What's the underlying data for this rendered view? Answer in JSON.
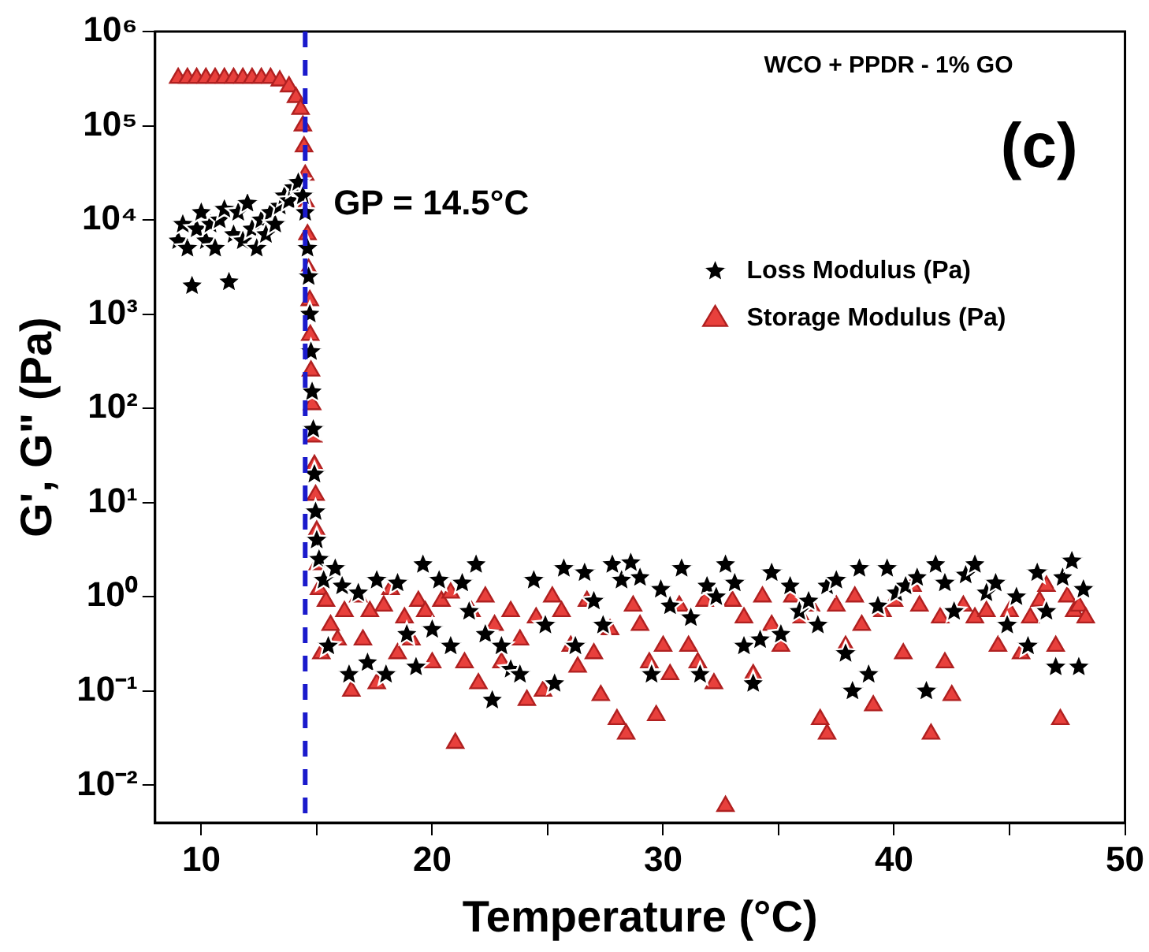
{
  "chart_data": {
    "type": "scatter",
    "title": "WCO + PPDR - 1% GO",
    "xlabel": "Temperature (°C)",
    "ylabel": "G', G\" (Pa)",
    "annotations": [
      "(c)"
    ],
    "legend": "top right",
    "log": "y",
    "grid": false,
    "xlim": [
      8,
      50
    ],
    "xticks": [
      10,
      {
        "value": 15,
        "label": null
      },
      20,
      {
        "value": 25,
        "label": null
      },
      30,
      {
        "value": 35,
        "label": null
      },
      40,
      {
        "value": 45,
        "label": null
      },
      50
    ],
    "ylim": [
      0.004,
      1000000
    ],
    "yticks": [
      {
        "value": 0.01,
        "label": "10⁻²"
      },
      {
        "value": 0.1,
        "label": "10⁻¹"
      },
      {
        "value": 1,
        "label": "10⁰"
      },
      {
        "value": 10,
        "label": "10¹"
      },
      {
        "value": 100,
        "label": "10²"
      },
      {
        "value": 1000,
        "label": "10³"
      },
      {
        "value": 10000,
        "label": "10⁴"
      },
      {
        "value": 100000,
        "label": "10⁵"
      },
      {
        "value": 1000000,
        "label": "10⁶"
      }
    ],
    "ref_lines": [
      {
        "axis": "x",
        "value": 14.5,
        "label": "GP = 14.5°C",
        "color": "#1a1acc",
        "line_style": "dashed"
      }
    ],
    "series": [
      {
        "name": "Loss Modulus (Pa)",
        "color": "#000000",
        "marker": "star",
        "x": [
          9.0,
          9.2,
          9.4,
          9.6,
          9.8,
          10.0,
          10.2,
          10.4,
          10.6,
          10.8,
          11.0,
          11.2,
          11.4,
          11.6,
          11.8,
          12.0,
          12.2,
          12.4,
          12.6,
          12.8,
          13.0,
          13.2,
          13.4,
          13.6,
          13.8,
          14.0,
          14.2,
          14.4,
          14.5,
          14.6,
          14.65,
          14.7,
          14.75,
          14.8,
          14.85,
          14.9,
          14.95,
          15.0,
          15.1,
          15.3,
          15.5,
          15.8,
          16.1,
          16.4,
          16.8,
          17.2,
          17.6,
          18.0,
          18.5,
          18.9,
          19.3,
          19.6,
          20.0,
          20.3,
          20.8,
          21.3,
          21.6,
          21.9,
          22.3,
          22.6,
          23.0,
          23.4,
          23.8,
          24.4,
          24.9,
          25.3,
          25.7,
          26.2,
          26.6,
          27.0,
          27.4,
          27.8,
          28.2,
          28.6,
          29.0,
          29.5,
          29.9,
          30.3,
          30.8,
          31.2,
          31.6,
          31.9,
          32.3,
          32.7,
          33.1,
          33.5,
          33.9,
          34.2,
          34.7,
          35.1,
          35.5,
          35.9,
          36.3,
          36.7,
          37.1,
          37.5,
          37.9,
          38.2,
          38.5,
          38.9,
          39.3,
          39.7,
          40.1,
          40.5,
          41.0,
          41.4,
          41.8,
          42.2,
          42.6,
          43.1,
          43.5,
          44.0,
          44.4,
          44.9,
          45.3,
          45.8,
          46.2,
          46.6,
          47.0,
          47.3,
          47.7,
          48.0,
          48.2
        ],
        "values": [
          6000,
          9000,
          5000,
          2000,
          8000,
          12000,
          6000,
          9000,
          5000,
          10000,
          13000,
          2200,
          7000,
          12000,
          6000,
          15000,
          8000,
          5000,
          10000,
          7000,
          12000,
          9000,
          14000,
          18000,
          16000,
          22000,
          25000,
          18000,
          12000,
          5000,
          2500,
          1000,
          400,
          150,
          60,
          20,
          8,
          4,
          2.5,
          1.5,
          0.3,
          2.0,
          1.3,
          0.15,
          1.1,
          0.2,
          1.5,
          0.15,
          1.4,
          0.4,
          0.18,
          2.2,
          0.45,
          1.5,
          0.3,
          1.4,
          0.7,
          2.2,
          0.4,
          0.08,
          0.3,
          0.17,
          0.15,
          1.5,
          0.5,
          0.12,
          2.0,
          0.3,
          1.8,
          0.9,
          0.5,
          2.2,
          1.5,
          2.3,
          1.6,
          0.15,
          1.2,
          0.8,
          2.0,
          0.6,
          0.15,
          1.3,
          1.0,
          2.2,
          1.4,
          0.3,
          0.12,
          0.35,
          1.8,
          0.4,
          1.3,
          0.7,
          0.9,
          0.5,
          1.3,
          1.5,
          0.25,
          0.1,
          2.0,
          0.15,
          0.8,
          2.0,
          1.1,
          1.3,
          1.6,
          0.1,
          2.2,
          1.4,
          0.7,
          1.7,
          2.2,
          1.1,
          1.4,
          0.5,
          1.0,
          0.3,
          1.8,
          0.7,
          0.18,
          1.6,
          2.4,
          0.18,
          1.2
        ]
      },
      {
        "name": "Storage Modulus (Pa)",
        "color": "#e8403c",
        "marker": "triangle",
        "x": [
          9.0,
          9.4,
          9.8,
          10.2,
          10.6,
          11.0,
          11.4,
          11.8,
          12.2,
          12.6,
          13.0,
          13.4,
          13.8,
          14.1,
          14.3,
          14.4,
          14.45,
          14.5,
          14.55,
          14.6,
          14.65,
          14.7,
          14.72,
          14.75,
          14.8,
          14.85,
          14.9,
          14.95,
          15.0,
          15.05,
          15.1,
          15.2,
          15.4,
          15.6,
          15.9,
          16.2,
          16.5,
          16.8,
          17.0,
          17.3,
          17.6,
          17.9,
          18.2,
          18.5,
          18.8,
          19.1,
          19.4,
          19.7,
          20.0,
          20.4,
          20.8,
          21.0,
          21.4,
          21.7,
          22.0,
          22.3,
          22.7,
          23.0,
          23.4,
          23.8,
          24.1,
          24.5,
          24.8,
          25.2,
          25.6,
          26.0,
          26.3,
          26.7,
          27.0,
          27.3,
          27.7,
          28.0,
          28.4,
          28.7,
          29.0,
          29.4,
          29.7,
          30.0,
          30.3,
          30.7,
          31.1,
          31.5,
          31.8,
          32.2,
          32.7,
          33.0,
          33.5,
          33.9,
          34.3,
          34.7,
          35.1,
          35.6,
          36.0,
          36.4,
          36.8,
          37.1,
          37.5,
          37.9,
          38.3,
          38.6,
          39.1,
          39.5,
          40.0,
          40.4,
          40.8,
          41.1,
          41.6,
          42.0,
          42.2,
          42.5,
          43.0,
          43.5,
          44.0,
          44.5,
          45.0,
          45.5,
          45.9,
          46.3,
          46.6,
          47.0,
          47.2,
          47.5,
          47.8,
          48.0,
          48.3
        ],
        "values": [
          320000,
          320000,
          320000,
          320000,
          320000,
          320000,
          320000,
          320000,
          320000,
          320000,
          320000,
          300000,
          260000,
          200000,
          150000,
          100000,
          60000,
          30000,
          15000,
          7000,
          3000,
          1400,
          600,
          250,
          110,
          50,
          25,
          12,
          5,
          2.2,
          1.2,
          0.25,
          0.9,
          0.5,
          0.35,
          0.7,
          0.1,
          1.0,
          0.35,
          0.7,
          0.12,
          0.8,
          1.2,
          0.25,
          0.6,
          0.35,
          0.9,
          0.7,
          0.2,
          0.9,
          1.1,
          0.028,
          0.2,
          0.7,
          0.12,
          1.0,
          0.5,
          0.2,
          0.7,
          0.35,
          0.08,
          0.6,
          0.1,
          1.0,
          0.7,
          0.3,
          0.18,
          0.9,
          0.25,
          0.09,
          0.45,
          0.05,
          0.035,
          0.8,
          0.5,
          0.2,
          0.055,
          0.3,
          0.15,
          0.8,
          0.3,
          0.2,
          0.9,
          0.12,
          0.006,
          0.9,
          0.6,
          0.15,
          1.0,
          0.5,
          0.3,
          1.0,
          0.6,
          0.8,
          0.05,
          0.035,
          0.8,
          0.3,
          1.0,
          0.5,
          0.07,
          0.7,
          0.9,
          0.25,
          1.3,
          0.8,
          0.035,
          0.6,
          0.2,
          0.09,
          0.8,
          0.6,
          0.7,
          0.3,
          0.7,
          0.25,
          0.6,
          0.9,
          1.3,
          0.3,
          0.05,
          1.0,
          0.7,
          0.8,
          0.6
        ]
      }
    ]
  }
}
